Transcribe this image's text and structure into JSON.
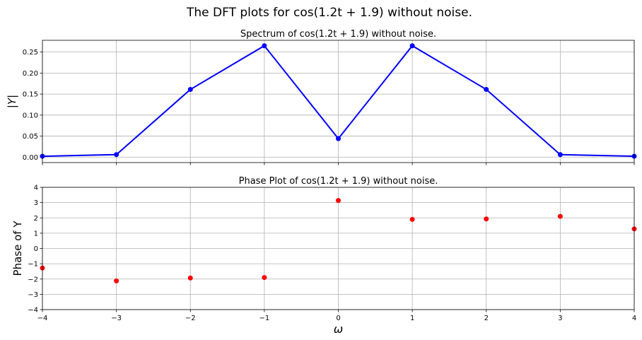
{
  "figure": {
    "suptitle": "The DFT plots for cos(1.2t + 1.9) without noise."
  },
  "chart_data": [
    {
      "type": "line",
      "title": "Spectrum of cos(1.2t + 1.9) without noise.",
      "xlabel": "",
      "ylabel": "|Y|",
      "x": [
        -4,
        -3,
        -2,
        -1,
        0,
        1,
        2,
        3,
        4
      ],
      "series": [
        {
          "values": [
            0.002,
            0.006,
            0.161,
            0.265,
            0.044,
            0.265,
            0.161,
            0.006,
            0.002
          ],
          "color": "#0000ff",
          "marker": "circle"
        }
      ],
      "xlim": [
        -4,
        4
      ],
      "ylim": [
        -0.013,
        0.278
      ],
      "yticks": [
        0.0,
        0.05,
        0.1,
        0.15,
        0.2,
        0.25
      ],
      "ytick_labels": [
        "0.00",
        "0.05",
        "0.10",
        "0.15",
        "0.20",
        "0.25"
      ],
      "xticks": [
        -4,
        -3,
        -2,
        -1,
        0,
        1,
        2,
        3,
        4
      ],
      "grid": true
    },
    {
      "type": "scatter",
      "title": "Phase Plot of cos(1.2t + 1.9) without noise.",
      "xlabel": "ω",
      "ylabel": "Phase of Y",
      "x": [
        -4,
        -3,
        -2,
        -1,
        0,
        1,
        2,
        3,
        4
      ],
      "series": [
        {
          "values": [
            -1.28,
            -2.12,
            -1.93,
            -1.9,
            3.14,
            1.9,
            1.93,
            2.1,
            1.28
          ],
          "color": "#ff0000",
          "marker": "circle"
        }
      ],
      "xlim": [
        -4,
        4
      ],
      "ylim": [
        -4,
        4
      ],
      "yticks": [
        -4,
        -3,
        -2,
        -1,
        0,
        1,
        2,
        3,
        4
      ],
      "ytick_labels": [
        "−4",
        "−3",
        "−2",
        "−1",
        "0",
        "1",
        "2",
        "3",
        "4"
      ],
      "xticks": [
        -4,
        -3,
        -2,
        -1,
        0,
        1,
        2,
        3,
        4
      ],
      "xtick_labels": [
        "−4",
        "−3",
        "−2",
        "−1",
        "0",
        "1",
        "2",
        "3",
        "4"
      ],
      "grid": true
    }
  ]
}
